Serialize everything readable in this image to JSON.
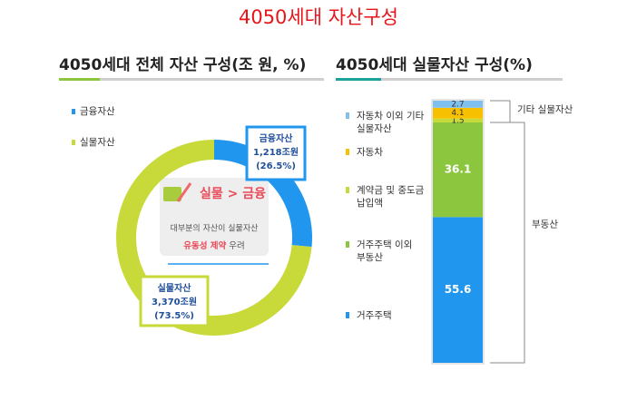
{
  "title": "4050세대 자산구성",
  "chart_data": [
    {
      "type": "donut",
      "title": "4050세대 전체 자산 구성(조 원, %)",
      "categories": [
        "금융자산",
        "실물자산"
      ],
      "values": [
        26.5,
        73.5
      ],
      "value_labels": [
        "(26.5%)",
        "(73.5%)"
      ],
      "amount_labels": [
        "1,218조원",
        "3,370조원"
      ],
      "colors": [
        "#2196ee",
        "#c8da3a"
      ],
      "annotations": {
        "headline": "실물 > 금융",
        "note": "대부분의 자산이 실물자산",
        "warning": "유동성 제약",
        "warning_suffix": "우려"
      }
    },
    {
      "type": "stacked_bar",
      "title": "4050세대 실물자산 구성(%)",
      "ylim": [
        0,
        100
      ],
      "series": [
        {
          "name": "거주주택",
          "color": "#2196ee",
          "values": [
            55.6
          ]
        },
        {
          "name": "거주주택 이외 부동산",
          "color": "#8cc63f",
          "values": [
            36.1
          ]
        },
        {
          "name": "계약금 및 중도금 납입액",
          "color": "#c8da3a",
          "values": [
            1.5
          ]
        },
        {
          "name": "자동차",
          "color": "#f7c000",
          "values": [
            4.1
          ]
        },
        {
          "name": "자동차 이외 기타 실물자산",
          "color": "#7fc0ee",
          "values": [
            2.7
          ]
        }
      ],
      "groups": [
        {
          "label": "기타 실물자산"
        },
        {
          "label": "부동산"
        }
      ]
    }
  ]
}
